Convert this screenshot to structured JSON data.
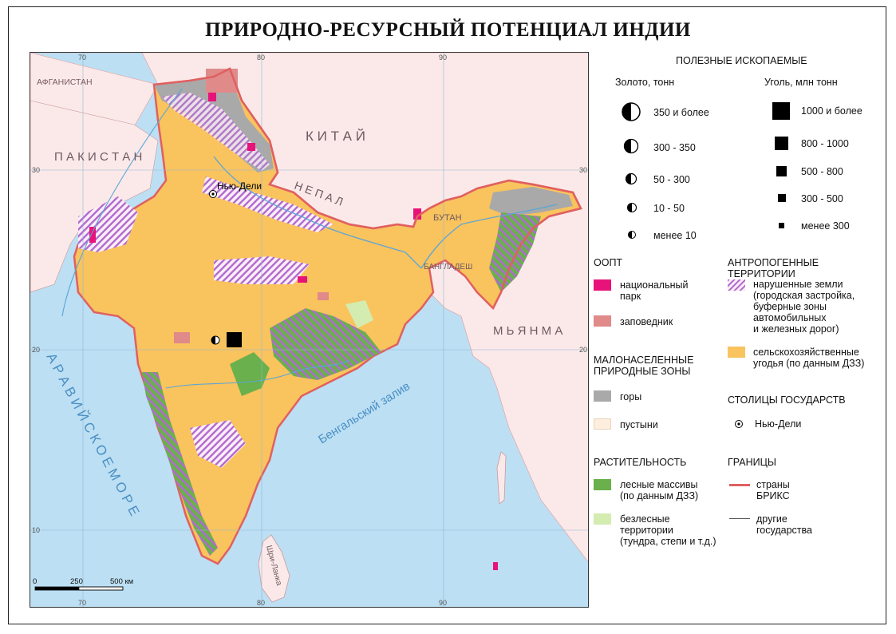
{
  "title": "ПРИРОДНО-РЕСУРСНЫЙ ПОТЕНЦИАЛ ИНДИИ",
  "map": {
    "graticule": {
      "top": [
        "70",
        "80",
        "90"
      ],
      "bottom": [
        "70",
        "80",
        "90"
      ],
      "left": [
        "30",
        "20",
        "10"
      ],
      "right": [
        "30",
        "20"
      ]
    },
    "labels": {
      "afghanistan": "АФГАНИСТАН",
      "pakistan": "П А К И С Т А Н",
      "china": "К И Т А Й",
      "nepal": "Н Е П А Л",
      "bhutan": "БУТАН",
      "bangladesh": "БАНГЛАДЕШ",
      "myanmar": "М Ь Я Н М А",
      "srilanka": "Шри-Ланка",
      "capital": "Нью-Дели",
      "arabian_sea": "А Р А В И Й С К О Е   М О Р Е",
      "bay_bengal": "Бенгальский  залив"
    },
    "scale": [
      "0",
      "250",
      "500 км"
    ]
  },
  "legend": {
    "minerals": {
      "heading": "ПОЛЕЗНЫЕ ИСКОПАЕМЫЕ",
      "gold_title": "Золото, тонн",
      "coal_title": "Уголь, млн тонн",
      "gold": [
        "350 и более",
        "300 - 350",
        "50 - 300",
        "10 - 50",
        "менее 10"
      ],
      "coal": [
        "1000 и более",
        "800 - 1000",
        "500 - 800",
        "300 - 500",
        "менее 300"
      ]
    },
    "oopt": {
      "heading": "ООПТ",
      "national_park": "национальный парк",
      "reserve": "заповедник"
    },
    "sparse": {
      "heading": "МАЛОНАСЕЛЕННЫЕ ПРИРОДНЫЕ ЗОНЫ",
      "mountains": "горы",
      "deserts": "пустыни"
    },
    "vegetation": {
      "heading": "РАСТИТЕЛЬНОСТЬ",
      "forest_1": "лесные массивы",
      "forest_2": "(по данным ДЗЗ)",
      "treeless_1": "безлесные",
      "treeless_2": "территории",
      "treeless_3": "(тундра, степи и т.д.)"
    },
    "anthro": {
      "heading": "АНТРОПОГЕННЫЕ ТЕРРИТОРИИ",
      "disturbed_1": "нарушенные земли",
      "disturbed_2": "(городская застройка,",
      "disturbed_3": "буферные зоны",
      "disturbed_4": "автомобильных",
      "disturbed_5": "и железных дорог)",
      "agri_1": "сельскохозяйственные",
      "agri_2": "угодья (по данным ДЗЗ)"
    },
    "capitals": {
      "heading": "СТОЛИЦЫ ГОСУДАРСТВ",
      "item": "Нью-Дели"
    },
    "borders": {
      "heading": "ГРАНИЦЫ",
      "brics_1": "страны",
      "brics_2": "БРИКС",
      "other_1": "другие",
      "other_2": "государства"
    }
  },
  "colors": {
    "sea": "#bcdff3",
    "foreign": "#fbe9e9",
    "agriculture": "#f9c35e",
    "forest": "#6ab04c",
    "treeless": "#d4ecb0",
    "mountains": "#a9a9a9",
    "desert": "#fdeedd",
    "national_park": "#e8137a",
    "reserve": "#e08a8a",
    "disturbed": "#b06ad0",
    "brics_border": "#e06060"
  }
}
